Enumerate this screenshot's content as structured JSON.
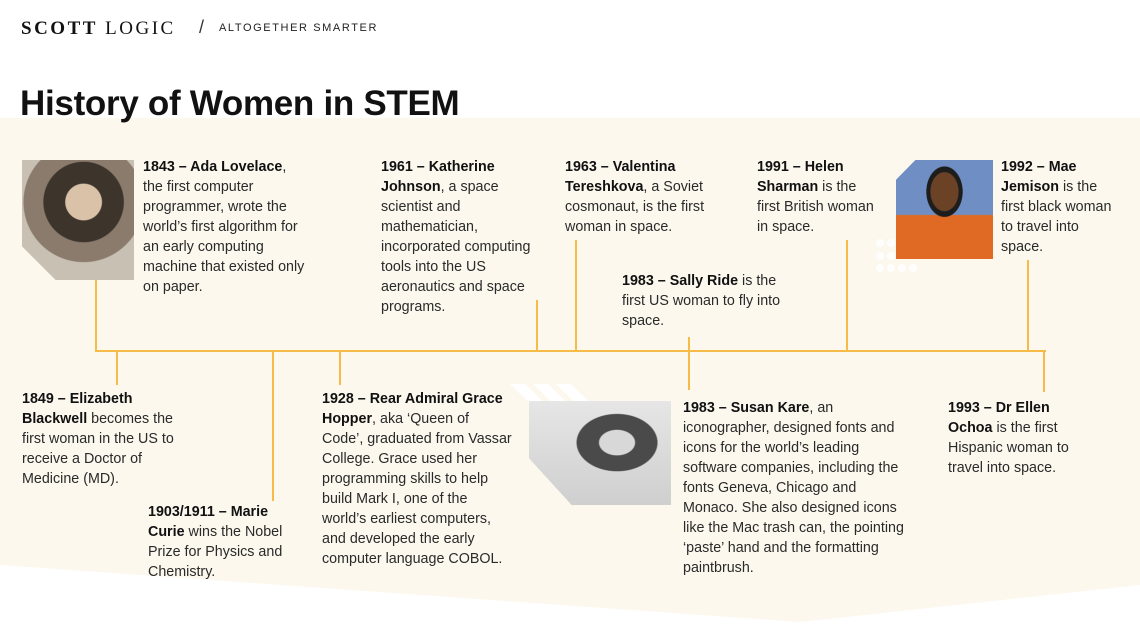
{
  "header": {
    "logo_bold": "SCOTT",
    "logo_light": "LOGIC",
    "separator": "/",
    "tagline": "ALTOGETHER SMARTER"
  },
  "title": "History of Women in STEM",
  "colors": {
    "timeline": "#f7bb48",
    "background_band": "#fcf8ee"
  },
  "entries": [
    {
      "bold": "1843 – Ada Lovelace",
      "rest": ", the first computer programmer, wrote the world’s first algorithm for an early computing machine that existed only on paper."
    },
    {
      "bold": "1849 – Elizabeth Blackwell",
      "rest": " becomes the first woman in the US to receive a Doctor of Medicine (MD)."
    },
    {
      "bold": "1903/1911 – Marie Curie",
      "rest": " wins the Nobel Prize for Physics and Chemistry."
    },
    {
      "bold": "1928 – Rear Admiral Grace Hopper",
      "rest": ", aka ‘Queen of Code’, graduated from Vassar College. Grace used her programming skills to help build Mark I, one of the world’s earliest computers, and developed the early computer language COBOL."
    },
    {
      "bold": "1961 – Katherine Johnson",
      "rest": ", a space scientist and mathematician, incorporated computing tools into the US aeronautics and space programs."
    },
    {
      "bold": "1963 – Valentina Tereshkova",
      "rest": ", a Soviet cosmonaut, is the first woman in space."
    },
    {
      "bold": "1983 – Sally Ride",
      "rest": " is the first US woman to fly into space."
    },
    {
      "bold": "1983 – Susan Kare",
      "rest": ", an iconographer, designed fonts and icons for the world’s leading software companies, including the fonts Geneva, Chicago and Monaco. She also designed icons like the Mac trash can, the pointing ‘paste’ hand and the formatting paintbrush."
    },
    {
      "bold": "1991 – Helen Sharman",
      "rest": " is the first British woman in space."
    },
    {
      "bold": "1992 – Mae Jemison",
      "rest": " is the first black woman to travel into space."
    },
    {
      "bold": "1993 – Dr Ellen Ochoa",
      "rest": " is the first Hispanic woman to travel into space."
    }
  ]
}
